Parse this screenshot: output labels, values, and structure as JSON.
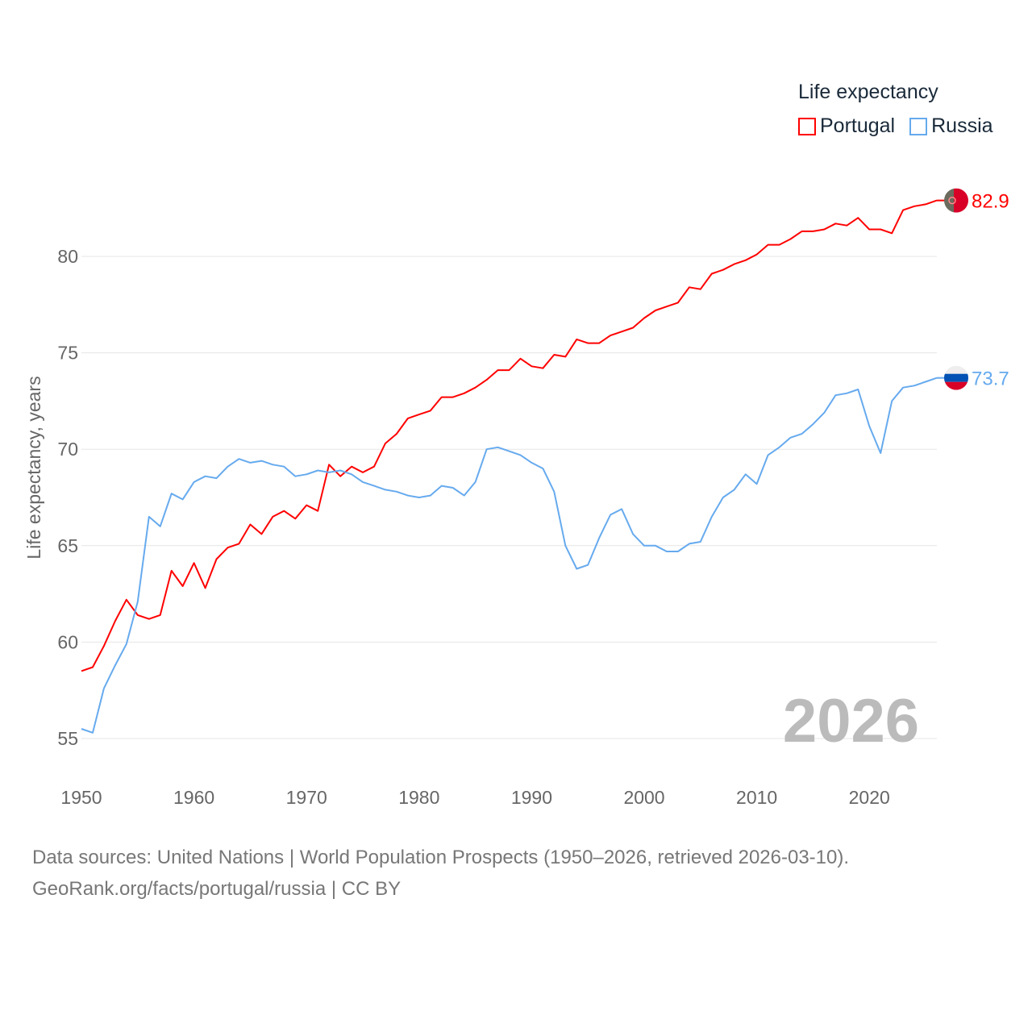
{
  "chart_data": {
    "type": "line",
    "title": "Life expectancy",
    "xlabel": "",
    "ylabel": "Life expectancy, years",
    "xlim": [
      1950,
      2026
    ],
    "ylim": [
      53,
      84
    ],
    "grid": true,
    "legend_placement": "top-right",
    "x_ticks": [
      "1950",
      "1960",
      "1970",
      "1980",
      "1990",
      "2000",
      "2010",
      "2020"
    ],
    "y_ticks": [
      "55",
      "60",
      "65",
      "70",
      "75",
      "80"
    ],
    "watermark_year": "2026",
    "x": [
      1950,
      1951,
      1952,
      1953,
      1954,
      1955,
      1956,
      1957,
      1958,
      1959,
      1960,
      1961,
      1962,
      1963,
      1964,
      1965,
      1966,
      1967,
      1968,
      1969,
      1970,
      1971,
      1972,
      1973,
      1974,
      1975,
      1976,
      1977,
      1978,
      1979,
      1980,
      1981,
      1982,
      1983,
      1984,
      1985,
      1986,
      1987,
      1988,
      1989,
      1990,
      1991,
      1992,
      1993,
      1994,
      1995,
      1996,
      1997,
      1998,
      1999,
      2000,
      2001,
      2002,
      2003,
      2004,
      2005,
      2006,
      2007,
      2008,
      2009,
      2010,
      2011,
      2012,
      2013,
      2014,
      2015,
      2016,
      2017,
      2018,
      2019,
      2020,
      2021,
      2022,
      2023,
      2024,
      2025,
      2026
    ],
    "series": [
      {
        "name": "Portugal",
        "color": "#ff0000",
        "end_label": "82.9",
        "flag": "portugal-flag",
        "values": [
          58.5,
          58.7,
          59.8,
          61.1,
          62.2,
          61.4,
          61.2,
          61.4,
          63.7,
          62.9,
          64.1,
          62.8,
          64.3,
          64.9,
          65.1,
          66.1,
          65.6,
          66.5,
          66.8,
          66.4,
          67.1,
          66.8,
          69.2,
          68.6,
          69.1,
          68.8,
          69.1,
          70.3,
          70.8,
          71.6,
          71.8,
          72.0,
          72.7,
          72.7,
          72.9,
          73.2,
          73.6,
          74.1,
          74.1,
          74.7,
          74.3,
          74.2,
          74.9,
          74.8,
          75.7,
          75.5,
          75.5,
          75.9,
          76.1,
          76.3,
          76.8,
          77.2,
          77.4,
          77.6,
          78.4,
          78.3,
          79.1,
          79.3,
          79.6,
          79.8,
          80.1,
          80.6,
          80.6,
          80.9,
          81.3,
          81.3,
          81.4,
          81.7,
          81.6,
          82.0,
          81.4,
          81.4,
          81.2,
          82.4,
          82.6,
          82.7,
          82.9
        ]
      },
      {
        "name": "Russia",
        "color": "#66aaee",
        "end_label": "73.7",
        "flag": "russia-flag",
        "values": [
          55.5,
          55.3,
          57.6,
          58.8,
          59.9,
          62.1,
          66.5,
          66.0,
          67.7,
          67.4,
          68.3,
          68.6,
          68.5,
          69.1,
          69.5,
          69.3,
          69.4,
          69.2,
          69.1,
          68.6,
          68.7,
          68.9,
          68.8,
          68.9,
          68.7,
          68.3,
          68.1,
          67.9,
          67.8,
          67.6,
          67.5,
          67.6,
          68.1,
          68.0,
          67.6,
          68.3,
          70.0,
          70.1,
          69.9,
          69.7,
          69.3,
          69.0,
          67.8,
          65.0,
          63.8,
          64.0,
          65.4,
          66.6,
          66.9,
          65.6,
          65.0,
          65.0,
          64.7,
          64.7,
          65.1,
          65.2,
          66.5,
          67.5,
          67.9,
          68.7,
          68.2,
          69.7,
          70.1,
          70.6,
          70.8,
          71.3,
          71.9,
          72.8,
          72.9,
          73.1,
          71.2,
          69.8,
          72.5,
          73.2,
          73.3,
          73.5,
          73.7
        ]
      }
    ]
  },
  "source": {
    "line1": "Data sources: United Nations | World Population Prospects (1950–2026, retrieved 2026-03-10).",
    "line2": "GeoRank.org/facts/portugal/russia | CC BY"
  }
}
